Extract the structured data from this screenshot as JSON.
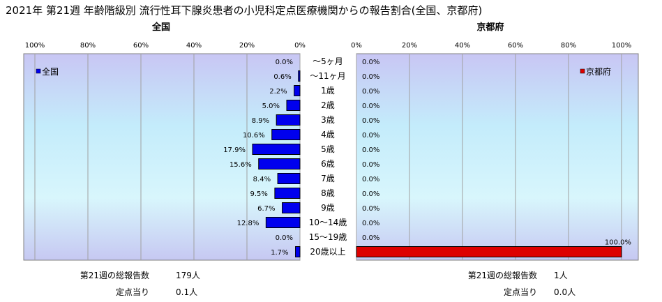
{
  "title": "2021年 第21週 年齢階級別 流行性耳下腺炎患者の小児科定点医療機関からの報告割合(全国、京都府)",
  "chart_data": [
    {
      "type": "bar",
      "orientation": "horizontal-reversed",
      "title": "全国",
      "legend": "全国",
      "legend_position": "top-left",
      "xlim": [
        0,
        100
      ],
      "ticks": [
        "100%",
        "80%",
        "60%",
        "40%",
        "20%",
        "0%"
      ],
      "categories": [
        "～5ヶ月",
        "～11ヶ月",
        "1歳",
        "2歳",
        "3歳",
        "4歳",
        "5歳",
        "6歳",
        "7歳",
        "8歳",
        "9歳",
        "10～14歳",
        "15～19歳",
        "20歳以上"
      ],
      "values": [
        0.0,
        0.6,
        2.2,
        5.0,
        8.9,
        10.6,
        17.9,
        15.6,
        8.4,
        9.5,
        6.7,
        12.8,
        0.0,
        1.7
      ],
      "labels": [
        "0.0%",
        "0.6%",
        "2.2%",
        "5.0%",
        "8.9%",
        "10.6%",
        "17.9%",
        "15.6%",
        "8.4%",
        "9.5%",
        "6.7%",
        "12.8%",
        "0.0%",
        "1.7%"
      ],
      "color": "#0000ee"
    },
    {
      "type": "bar",
      "orientation": "horizontal",
      "title": "京都府",
      "legend": "京都府",
      "legend_position": "top-right",
      "xlim": [
        0,
        100
      ],
      "ticks": [
        "0%",
        "20%",
        "40%",
        "60%",
        "80%",
        "100%"
      ],
      "categories": [
        "～5ヶ月",
        "～11ヶ月",
        "1歳",
        "2歳",
        "3歳",
        "4歳",
        "5歳",
        "6歳",
        "7歳",
        "8歳",
        "9歳",
        "10～14歳",
        "15～19歳",
        "20歳以上"
      ],
      "values": [
        0.0,
        0.0,
        0.0,
        0.0,
        0.0,
        0.0,
        0.0,
        0.0,
        0.0,
        0.0,
        0.0,
        0.0,
        0.0,
        100.0
      ],
      "labels": [
        "0.0%",
        "0.0%",
        "0.0%",
        "0.0%",
        "0.0%",
        "0.0%",
        "0.0%",
        "0.0%",
        "0.0%",
        "0.0%",
        "0.0%",
        "0.0%",
        "0.0%",
        "100.0%"
      ],
      "color": "#dd0000"
    }
  ],
  "footer": {
    "national": {
      "total_label": "第21週の総報告数",
      "total_value": "179人",
      "per_label": "定点当り",
      "per_value": "0.1人"
    },
    "kyoto": {
      "total_label": "第21週の総報告数",
      "total_value": "1人",
      "per_label": "定点当り",
      "per_value": "0.0人"
    }
  }
}
